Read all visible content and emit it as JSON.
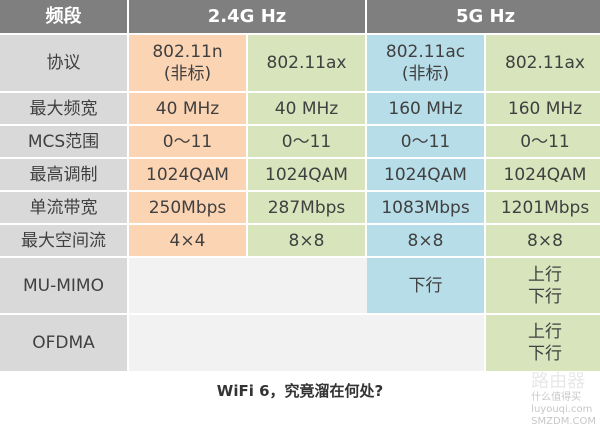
{
  "header": {
    "band": "频段",
    "g24": "2.4G Hz",
    "g5": "5G Hz"
  },
  "rows": [
    {
      "label": "协议",
      "cells": [
        "802.11n\n(非标)",
        "802.11ax",
        "802.11ac\n(非标)",
        "802.11ax"
      ]
    },
    {
      "label": "最大频宽",
      "cells": [
        "40 MHz",
        "40 MHz",
        "160 MHz",
        "160 MHz"
      ]
    },
    {
      "label": "MCS范围",
      "cells": [
        "0～11",
        "0～11",
        "0～11",
        "0～11"
      ]
    },
    {
      "label": "最高调制",
      "cells": [
        "1024QAM",
        "1024QAM",
        "1024QAM",
        "1024QAM"
      ]
    },
    {
      "label": "单流带宽",
      "cells": [
        "250Mbps",
        "287Mbps",
        "1083Mbps",
        "1201Mbps"
      ]
    },
    {
      "label": "最大空间流",
      "cells": [
        "4×4",
        "8×8",
        "8×8",
        "8×8"
      ]
    },
    {
      "label": "MU-MIMO",
      "cells": [
        "",
        "",
        "下行",
        "上行\n下行"
      ]
    },
    {
      "label": "OFDMA",
      "cells": [
        "",
        "",
        "",
        "上行\n下行"
      ]
    }
  ],
  "caption": "WiFi 6，究竟溜在何处?",
  "watermark": {
    "line1": "路由器",
    "line2": "什么值得买",
    "line3": "luyouqi.com",
    "line4": "SMZDM.COM"
  },
  "colors": {
    "header": "#7f7f7f",
    "label": "#d9d9d9",
    "n24": "#fbd4b4",
    "ax": "#d7e4bc",
    "ac5": "#b7dde8",
    "empty": "#f2f2f2"
  }
}
